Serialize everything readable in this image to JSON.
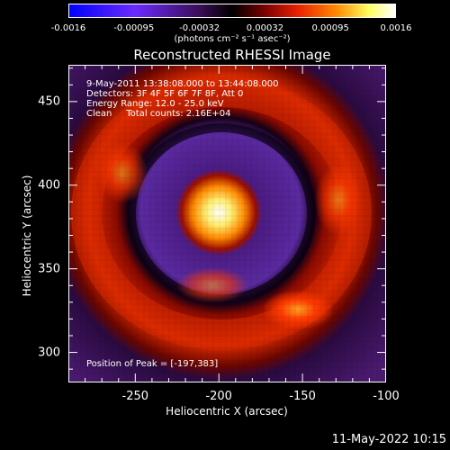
{
  "colorbar": {
    "ticks": [
      "-0.0016",
      "-0.00095",
      "-0.00032",
      "0.00032",
      "0.00095",
      "0.0016"
    ],
    "units": "(photons cm⁻² s⁻¹ asec⁻²)",
    "colormap": [
      "#0000ff",
      "#6b2bff",
      "#4a1066",
      "#000000",
      "#7a0000",
      "#e82000",
      "#ff8a00",
      "#ffff60",
      "#ffffff"
    ]
  },
  "title": "Reconstructed RHESSI Image",
  "annotations": {
    "line1": "9-May-2011 13:38:08.000 to 13:44:08.000",
    "line2": "Detectors: 3F 4F 5F 6F 7F 8F, Att 0",
    "line3": "Energy Range: 12.0 - 25.0 keV",
    "line4": "Clean     Total counts: 2.16E+04",
    "peak": "Position of Peak = [-197,383]"
  },
  "axes": {
    "xlabel": "Heliocentric X (arcsec)",
    "ylabel": "Heliocentric Y (arcsec)",
    "xticks": [
      "-250",
      "-200",
      "-150",
      "-100"
    ],
    "yticks": [
      "450",
      "400",
      "350",
      "300"
    ],
    "xlim": [
      -290,
      -100
    ],
    "ylim": [
      282,
      472
    ]
  },
  "timestamp": "11-May-2022 10:15"
}
